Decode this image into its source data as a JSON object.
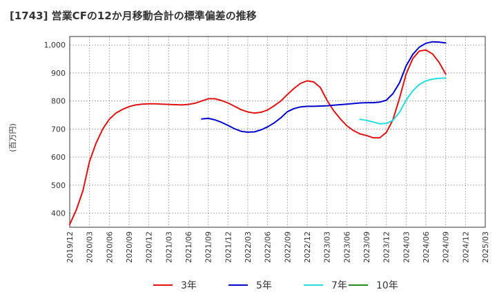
{
  "chart_data": {
    "type": "line",
    "title": "[1743]  営業CFの12か月移動合計の標準偏差の推移",
    "ylabel": "(百万円)",
    "xlabel": "",
    "ylim": [
      350,
      1030
    ],
    "xlim": [
      "2019/12",
      "2025/03"
    ],
    "grid": true,
    "legend_position": "bottom",
    "y_ticks": [
      400,
      500,
      600,
      700,
      800,
      900,
      1000
    ],
    "y_tick_labels": [
      "400",
      "500",
      "600",
      "700",
      "800",
      "900",
      "1,000"
    ],
    "x_tick_labels": [
      "2019/12",
      "2020/03",
      "2020/06",
      "2020/09",
      "2020/12",
      "2021/03",
      "2021/06",
      "2021/09",
      "2021/12",
      "2022/03",
      "2022/06",
      "2022/09",
      "2022/12",
      "2023/03",
      "2023/06",
      "2023/09",
      "2023/12",
      "2024/03",
      "2024/06",
      "2024/09",
      "2024/12",
      "2025/03"
    ],
    "series": [
      {
        "name": "3年",
        "color": "#dd1111",
        "x": [
          "2019/12",
          "2020/01",
          "2020/02",
          "2020/03",
          "2020/04",
          "2020/05",
          "2020/06",
          "2020/07",
          "2020/08",
          "2020/09",
          "2020/10",
          "2020/11",
          "2020/12",
          "2021/01",
          "2021/02",
          "2021/03",
          "2021/04",
          "2021/05",
          "2021/06",
          "2021/07",
          "2021/08",
          "2021/09",
          "2021/10",
          "2021/11",
          "2021/12",
          "2022/01",
          "2022/02",
          "2022/03",
          "2022/04",
          "2022/05",
          "2022/06",
          "2022/07",
          "2022/08",
          "2022/09",
          "2022/10",
          "2022/11",
          "2022/12",
          "2023/01",
          "2023/02",
          "2023/03",
          "2023/04",
          "2023/05",
          "2023/06",
          "2023/07",
          "2023/08",
          "2023/09",
          "2023/10",
          "2023/11",
          "2023/12",
          "2024/01",
          "2024/02",
          "2024/03",
          "2024/04",
          "2024/05",
          "2024/06",
          "2024/07",
          "2024/08",
          "2024/09"
        ],
        "values": [
          360,
          412,
          480,
          585,
          650,
          700,
          735,
          757,
          770,
          780,
          786,
          789,
          790,
          790,
          789,
          788,
          787,
          786,
          788,
          792,
          800,
          808,
          808,
          802,
          793,
          781,
          769,
          761,
          757,
          760,
          768,
          783,
          800,
          823,
          845,
          863,
          872,
          868,
          848,
          803,
          766,
          737,
          712,
          695,
          683,
          677,
          669,
          669,
          688,
          733,
          810,
          896,
          951,
          978,
          982,
          968,
          938,
          896
        ]
      },
      {
        "name": "5年",
        "color": "#0000cc",
        "x": [
          "2021/08",
          "2021/09",
          "2021/10",
          "2021/11",
          "2021/12",
          "2022/01",
          "2022/02",
          "2022/03",
          "2022/04",
          "2022/05",
          "2022/06",
          "2022/07",
          "2022/08",
          "2022/09",
          "2022/10",
          "2022/11",
          "2022/12",
          "2023/01",
          "2023/02",
          "2023/03",
          "2023/04",
          "2023/05",
          "2023/06",
          "2023/07",
          "2023/08",
          "2023/09",
          "2023/10",
          "2023/11",
          "2023/12",
          "2024/01",
          "2024/02",
          "2024/03",
          "2024/04",
          "2024/05",
          "2024/06",
          "2024/07",
          "2024/08",
          "2024/09"
        ],
        "values": [
          736,
          738,
          733,
          724,
          713,
          701,
          692,
          689,
          690,
          697,
          708,
          722,
          740,
          762,
          773,
          779,
          781,
          781,
          782,
          783,
          785,
          787,
          789,
          791,
          793,
          794,
          794,
          796,
          803,
          826,
          865,
          925,
          966,
          992,
          1006,
          1011,
          1010,
          1007
        ]
      },
      {
        "name": "7年",
        "color": "#22dddd",
        "x": [
          "2023/08",
          "2023/09",
          "2023/10",
          "2023/11",
          "2023/12",
          "2024/01",
          "2024/02",
          "2024/03",
          "2024/04",
          "2024/05",
          "2024/06",
          "2024/07",
          "2024/08",
          "2024/09"
        ],
        "values": [
          735,
          731,
          725,
          719,
          720,
          731,
          760,
          803,
          836,
          859,
          872,
          878,
          881,
          882
        ]
      },
      {
        "name": "10年",
        "color": "#228822",
        "x": [],
        "values": []
      }
    ]
  }
}
